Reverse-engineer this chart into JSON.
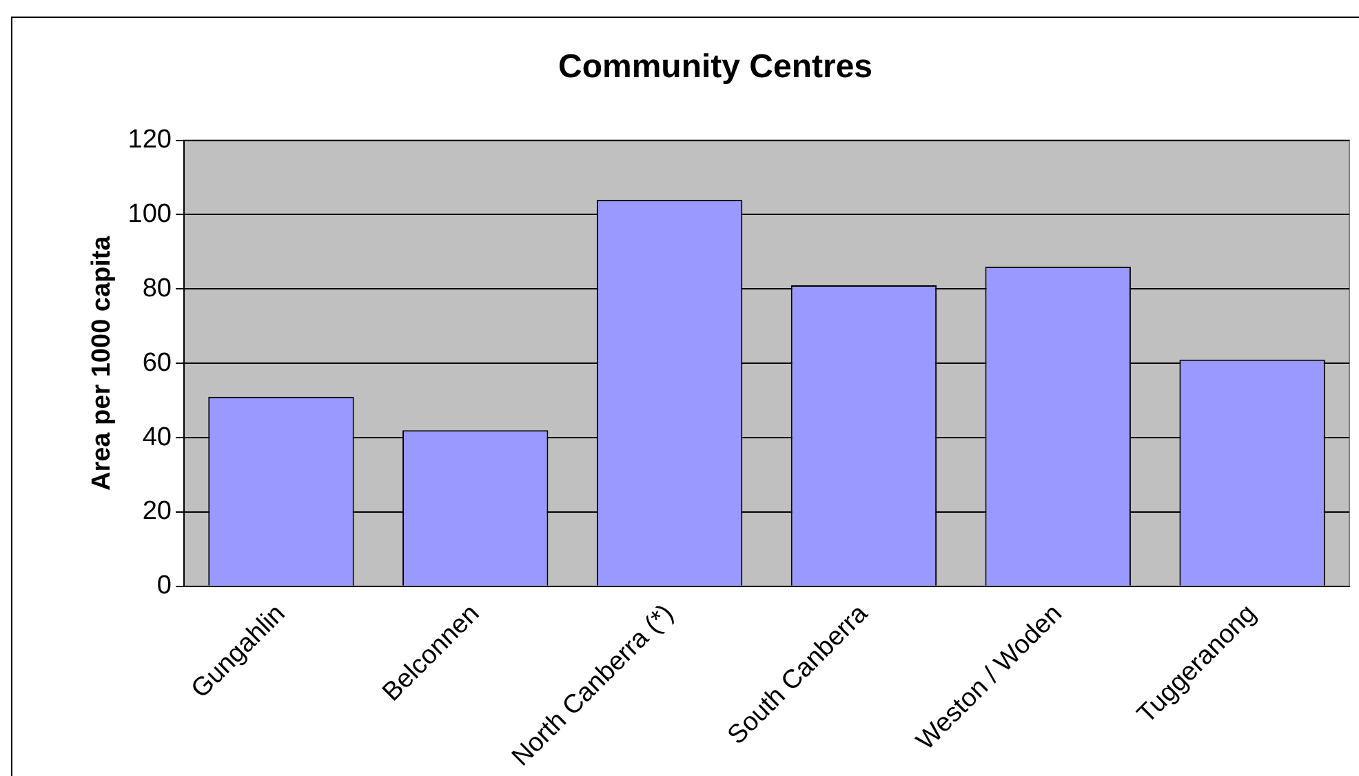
{
  "chart_data": {
    "type": "bar",
    "title": "Community Centres",
    "ylabel": "Area per 1000 capita",
    "categories": [
      "Gungahlin",
      "Belconnen",
      "North Canberra (*)",
      "South Canberra",
      "Weston / Woden",
      "Tuggeranong"
    ],
    "values": [
      51,
      42,
      104,
      81,
      86,
      61
    ],
    "color": "#9999ff",
    "ylim": [
      0,
      120
    ],
    "yticks": [
      0,
      20,
      40,
      60,
      80,
      100,
      120
    ],
    "grid": "y",
    "legend": false
  }
}
